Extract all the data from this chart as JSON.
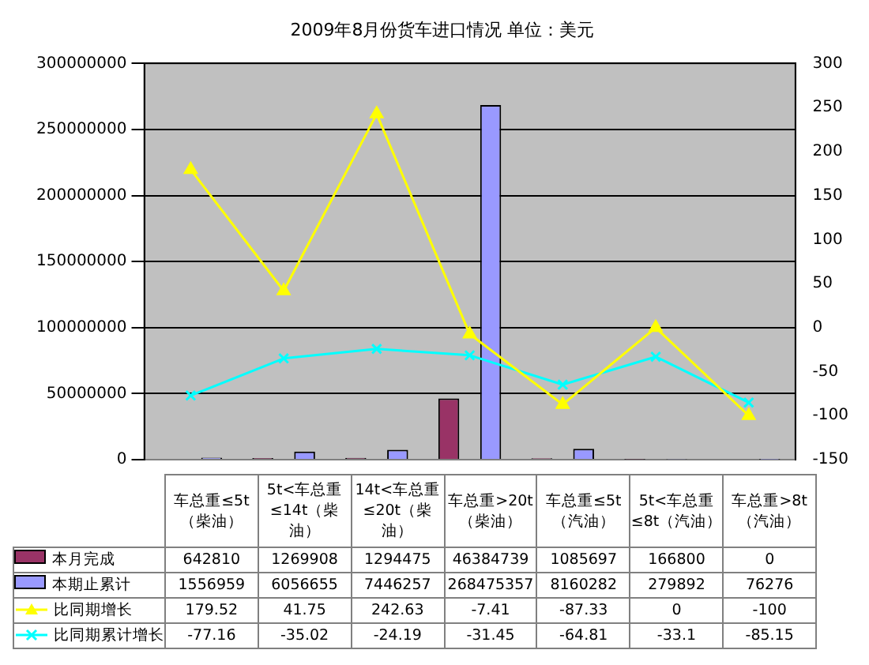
{
  "chart_data": {
    "type": "bar",
    "title": "2009年8月份货车进口情况 单位：美元",
    "categories": [
      "车总重≤5t（柴油）",
      "5t<车总重≤14t（柴油）",
      "14t<车总重≤20t（柴油）",
      "车总重>20t（柴油）",
      "车总重≤5t（汽油）",
      "5t<车总重≤8t（汽油）",
      "车总重>8t（汽油）"
    ],
    "series": [
      {
        "name": "本月完成",
        "color": "#993366",
        "values": [
          642810,
          1269908,
          1294475,
          46384739,
          1085697,
          166800,
          0
        ]
      },
      {
        "name": "本期止累计",
        "color": "#9999ff",
        "values": [
          1556959,
          6056655,
          7446257,
          268475357,
          8160282,
          279892,
          76276
        ]
      },
      {
        "name": "比同期增长",
        "type": "line",
        "axis": "y2",
        "color": "#ffff00",
        "marker": "triangle",
        "values": [
          179.52,
          41.75,
          242.63,
          -7.41,
          -87.33,
          0,
          -100
        ]
      },
      {
        "name": "比同期累计增长",
        "type": "line",
        "axis": "y2",
        "color": "#00ffff",
        "marker": "cross",
        "values": [
          -77.16,
          -35.02,
          -24.19,
          -31.45,
          -64.81,
          -33.1,
          -85.15
        ]
      }
    ],
    "ylim": [
      0,
      300000000
    ],
    "yticks": [
      0,
      50000000,
      100000000,
      150000000,
      200000000,
      250000000,
      300000000
    ],
    "y2lim": [
      -150,
      300
    ],
    "y2ticks": [
      -150,
      -100,
      -50,
      0,
      50,
      100,
      150,
      200,
      250,
      300
    ],
    "grid": "y",
    "legend": "bottom",
    "data_labels": true
  }
}
